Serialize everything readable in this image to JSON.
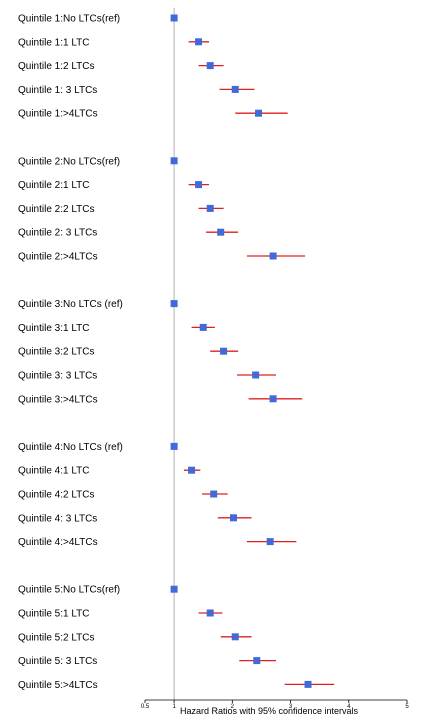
{
  "chart_data": {
    "type": "forest",
    "xlabel": "Hazard Ratios with 95% confidence intervals",
    "xlim": [
      0.5,
      5
    ],
    "reference_line": 1,
    "x_ticks": [
      {
        "value": 0.5,
        "label": "0.5"
      },
      {
        "value": 1,
        "label": "1"
      },
      {
        "value": 2,
        "label": "2"
      },
      {
        "value": 3,
        "label": "3"
      },
      {
        "value": 4,
        "label": "4"
      },
      {
        "value": 5,
        "label": "5"
      }
    ],
    "colors": {
      "point": "#4169d8",
      "ci": "#e02020",
      "refline": "#b0b0b0",
      "axis": "#000000"
    },
    "groups": [
      {
        "rows": [
          {
            "label": "Quintile 1:No LTCs(ref)",
            "hr": 1.0,
            "lower": 1.0,
            "upper": 1.0
          },
          {
            "label": "Quintile 1:1 LTC",
            "hr": 1.42,
            "lower": 1.25,
            "upper": 1.6
          },
          {
            "label": "Quintile 1:2 LTCs",
            "hr": 1.62,
            "lower": 1.42,
            "upper": 1.85
          },
          {
            "label": "Quintile 1: 3 LTCs",
            "hr": 2.05,
            "lower": 1.78,
            "upper": 2.38
          },
          {
            "label": "Quintile 1:>4LTCs",
            "hr": 2.45,
            "lower": 2.05,
            "upper": 2.95
          }
        ]
      },
      {
        "rows": [
          {
            "label": "Quintile 2:No LTCs(ref)",
            "hr": 1.0,
            "lower": 1.0,
            "upper": 1.0
          },
          {
            "label": "Quintile 2:1 LTC",
            "hr": 1.42,
            "lower": 1.25,
            "upper": 1.6
          },
          {
            "label": "Quintile 2:2 LTCs",
            "hr": 1.62,
            "lower": 1.42,
            "upper": 1.85
          },
          {
            "label": "Quintile 2: 3 LTCs",
            "hr": 1.8,
            "lower": 1.55,
            "upper": 2.1
          },
          {
            "label": "Quintile 2:>4LTCs",
            "hr": 2.7,
            "lower": 2.25,
            "upper": 3.25
          }
        ]
      },
      {
        "rows": [
          {
            "label": "Quintile 3:No LTCs (ref)",
            "hr": 1.0,
            "lower": 1.0,
            "upper": 1.0
          },
          {
            "label": "Quintile 3:1 LTC",
            "hr": 1.5,
            "lower": 1.3,
            "upper": 1.7
          },
          {
            "label": "Quintile 3:2 LTCs",
            "hr": 1.85,
            "lower": 1.62,
            "upper": 2.1
          },
          {
            "label": "Quintile 3: 3 LTCs",
            "hr": 2.4,
            "lower": 2.08,
            "upper": 2.75
          },
          {
            "label": "Quintile 3:>4LTCs",
            "hr": 2.7,
            "lower": 2.28,
            "upper": 3.2
          }
        ]
      },
      {
        "rows": [
          {
            "label": "Quintile 4:No LTCs (ref)",
            "hr": 1.0,
            "lower": 1.0,
            "upper": 1.0
          },
          {
            "label": "Quintile 4:1 LTC",
            "hr": 1.3,
            "lower": 1.17,
            "upper": 1.45
          },
          {
            "label": "Quintile 4:2 LTCs",
            "hr": 1.68,
            "lower": 1.48,
            "upper": 1.92
          },
          {
            "label": "Quintile 4: 3 LTCs",
            "hr": 2.02,
            "lower": 1.75,
            "upper": 2.33
          },
          {
            "label": "Quintile 4:>4LTCs",
            "hr": 2.65,
            "lower": 2.25,
            "upper": 3.1
          }
        ]
      },
      {
        "rows": [
          {
            "label": "Quintile 5:No LTCs(ref)",
            "hr": 1.0,
            "lower": 1.0,
            "upper": 1.0
          },
          {
            "label": "Quintile 5:1 LTC",
            "hr": 1.62,
            "lower": 1.42,
            "upper": 1.83
          },
          {
            "label": "Quintile 5:2 LTCs",
            "hr": 2.05,
            "lower": 1.8,
            "upper": 2.33
          },
          {
            "label": "Quintile 5: 3 LTCs",
            "hr": 2.42,
            "lower": 2.12,
            "upper": 2.75
          },
          {
            "label": "Quintile 5:>4LTCs",
            "hr": 3.3,
            "lower": 2.9,
            "upper": 3.75
          }
        ]
      }
    ]
  }
}
